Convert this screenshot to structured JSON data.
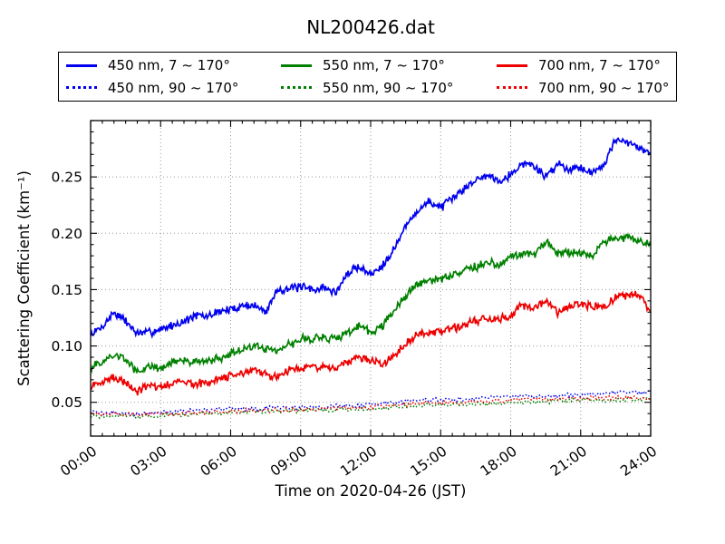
{
  "chart_data": {
    "type": "line",
    "title": "NL200426.dat",
    "xlabel": "Time on 2020-04-26 (JST)",
    "ylabel": "Scattering Coefficient (km⁻¹)",
    "xlim_hours": [
      0,
      24
    ],
    "ylim": [
      0.02,
      0.3
    ],
    "x_tick_labels": [
      "00:00",
      "03:00",
      "06:00",
      "09:00",
      "12:00",
      "15:00",
      "18:00",
      "21:00",
      "24:00"
    ],
    "x_major_interval_hours": 3,
    "x_minor_interval_hours": 0.5,
    "y_tick_labels": [
      "0.05",
      "0.10",
      "0.15",
      "0.20",
      "0.25"
    ],
    "y_major_ticks": [
      0.05,
      0.1,
      0.15,
      0.2,
      0.25
    ],
    "y_minor_interval": 0.01,
    "grid": "dotted",
    "grid_color": "#999999",
    "legend_position": "top",
    "legend_columns": 3,
    "series": [
      {
        "label": "450 nm, 7 ~ 170°",
        "color": "#0000ee",
        "style": "solid",
        "x_step_hours": 0.5,
        "values": [
          0.11,
          0.117,
          0.13,
          0.122,
          0.111,
          0.112,
          0.115,
          0.118,
          0.122,
          0.127,
          0.126,
          0.131,
          0.132,
          0.136,
          0.136,
          0.13,
          0.15,
          0.151,
          0.152,
          0.15,
          0.152,
          0.147,
          0.164,
          0.171,
          0.163,
          0.172,
          0.186,
          0.206,
          0.22,
          0.228,
          0.223,
          0.23,
          0.24,
          0.247,
          0.252,
          0.247,
          0.252,
          0.262,
          0.26,
          0.25,
          0.262,
          0.257,
          0.259,
          0.253,
          0.262,
          0.283,
          0.28,
          0.276,
          0.272
        ]
      },
      {
        "label": "550 nm, 7 ~ 170°",
        "color": "#008000",
        "style": "solid",
        "x_step_hours": 0.5,
        "values": [
          0.08,
          0.086,
          0.092,
          0.088,
          0.077,
          0.081,
          0.08,
          0.086,
          0.088,
          0.085,
          0.087,
          0.089,
          0.093,
          0.097,
          0.1,
          0.098,
          0.096,
          0.101,
          0.106,
          0.107,
          0.108,
          0.106,
          0.112,
          0.117,
          0.112,
          0.118,
          0.13,
          0.145,
          0.155,
          0.158,
          0.16,
          0.163,
          0.167,
          0.17,
          0.174,
          0.172,
          0.181,
          0.182,
          0.181,
          0.192,
          0.182,
          0.183,
          0.182,
          0.179,
          0.192,
          0.195,
          0.197,
          0.193,
          0.189
        ]
      },
      {
        "label": "700 nm, 7 ~ 170°",
        "color": "#ee0000",
        "style": "solid",
        "x_step_hours": 0.5,
        "values": [
          0.063,
          0.068,
          0.072,
          0.068,
          0.06,
          0.064,
          0.063,
          0.067,
          0.07,
          0.066,
          0.068,
          0.07,
          0.074,
          0.075,
          0.077,
          0.075,
          0.073,
          0.079,
          0.08,
          0.081,
          0.082,
          0.08,
          0.086,
          0.09,
          0.086,
          0.085,
          0.091,
          0.102,
          0.11,
          0.112,
          0.112,
          0.115,
          0.119,
          0.122,
          0.124,
          0.123,
          0.128,
          0.136,
          0.134,
          0.14,
          0.13,
          0.134,
          0.137,
          0.135,
          0.134,
          0.142,
          0.145,
          0.147,
          0.128
        ]
      },
      {
        "label": "450 nm, 90 ~ 170°",
        "color": "#0000ee",
        "style": "dotted",
        "x_step_hours": 2,
        "values": [
          0.041,
          0.04,
          0.042,
          0.044,
          0.045,
          0.046,
          0.048,
          0.052,
          0.053,
          0.055,
          0.056,
          0.058,
          0.059
        ]
      },
      {
        "label": "550 nm, 90 ~ 170°",
        "color": "#008000",
        "style": "dotted",
        "x_step_hours": 2,
        "values": [
          0.038,
          0.037,
          0.039,
          0.041,
          0.042,
          0.043,
          0.044,
          0.047,
          0.048,
          0.05,
          0.051,
          0.052,
          0.053
        ]
      },
      {
        "label": "700 nm, 90 ~ 170°",
        "color": "#ee0000",
        "style": "dotted",
        "x_step_hours": 2,
        "values": [
          0.04,
          0.039,
          0.04,
          0.042,
          0.043,
          0.044,
          0.046,
          0.049,
          0.05,
          0.052,
          0.053,
          0.054,
          0.054
        ]
      }
    ]
  }
}
